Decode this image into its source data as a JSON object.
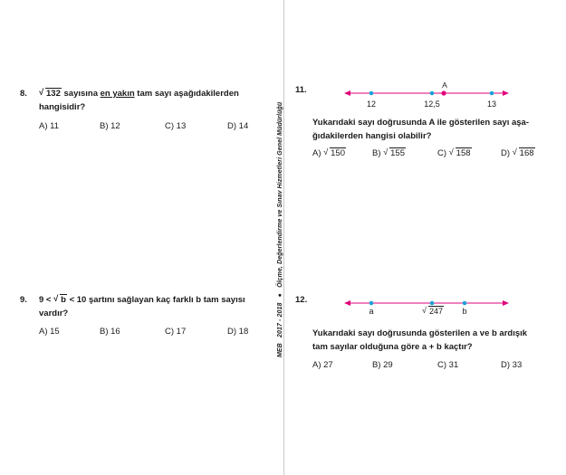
{
  "sidebar": {
    "org": "MEB",
    "years": "2017 - 2018",
    "bullet": "●",
    "dept": "Ölçme, Değerlendirme ve Sınav Hizmetleri Genel Müdürlüğü"
  },
  "q8": {
    "number": "8.",
    "radicand": "132",
    "text_a": " sayısına ",
    "text_u": "en yakın",
    "text_b": " tam sayı aşağıdakilerden",
    "text_c": "hangisidir?",
    "options": [
      "A) 11",
      "B) 12",
      "C) 13",
      "D) 14"
    ]
  },
  "q9": {
    "number": "9.",
    "text_a": "9 < ",
    "radicand": "b",
    "text_b": " < 10 şartını sağlayan kaç farklı b tam sayısı",
    "text_c": "vardır?",
    "options": [
      "A) 15",
      "B) 16",
      "C) 17",
      "D) 18"
    ]
  },
  "q11": {
    "number": "11.",
    "numberline": {
      "labels": [
        "12",
        "12,5",
        "13"
      ],
      "point_label": "A"
    },
    "text_a": "Yukarıdaki sayı doğrusunda A ile gösterilen sayı aşa-",
    "text_b": "ğıdakilerden hangisi olabilir?",
    "options": [
      {
        "letter": "A)",
        "radicand": "150"
      },
      {
        "letter": "B)",
        "radicand": "155"
      },
      {
        "letter": "C)",
        "radicand": "158"
      },
      {
        "letter": "D)",
        "radicand": "168"
      }
    ]
  },
  "q12": {
    "number": "12.",
    "numberline": {
      "label_a": "a",
      "label_mid": "247",
      "label_b": "b"
    },
    "text_a": "Yukarıdaki sayı doğrusunda gösterilen a ve b ardışık",
    "text_b": "tam sayılar olduğuna göre a + b kaçtır?",
    "options": [
      "A) 27",
      "B) 29",
      "C) 31",
      "D) 33"
    ]
  },
  "colors": {
    "line": "#e0007a",
    "dot_blue": "#1ba0d8",
    "dot_pink": "#e0007a"
  }
}
